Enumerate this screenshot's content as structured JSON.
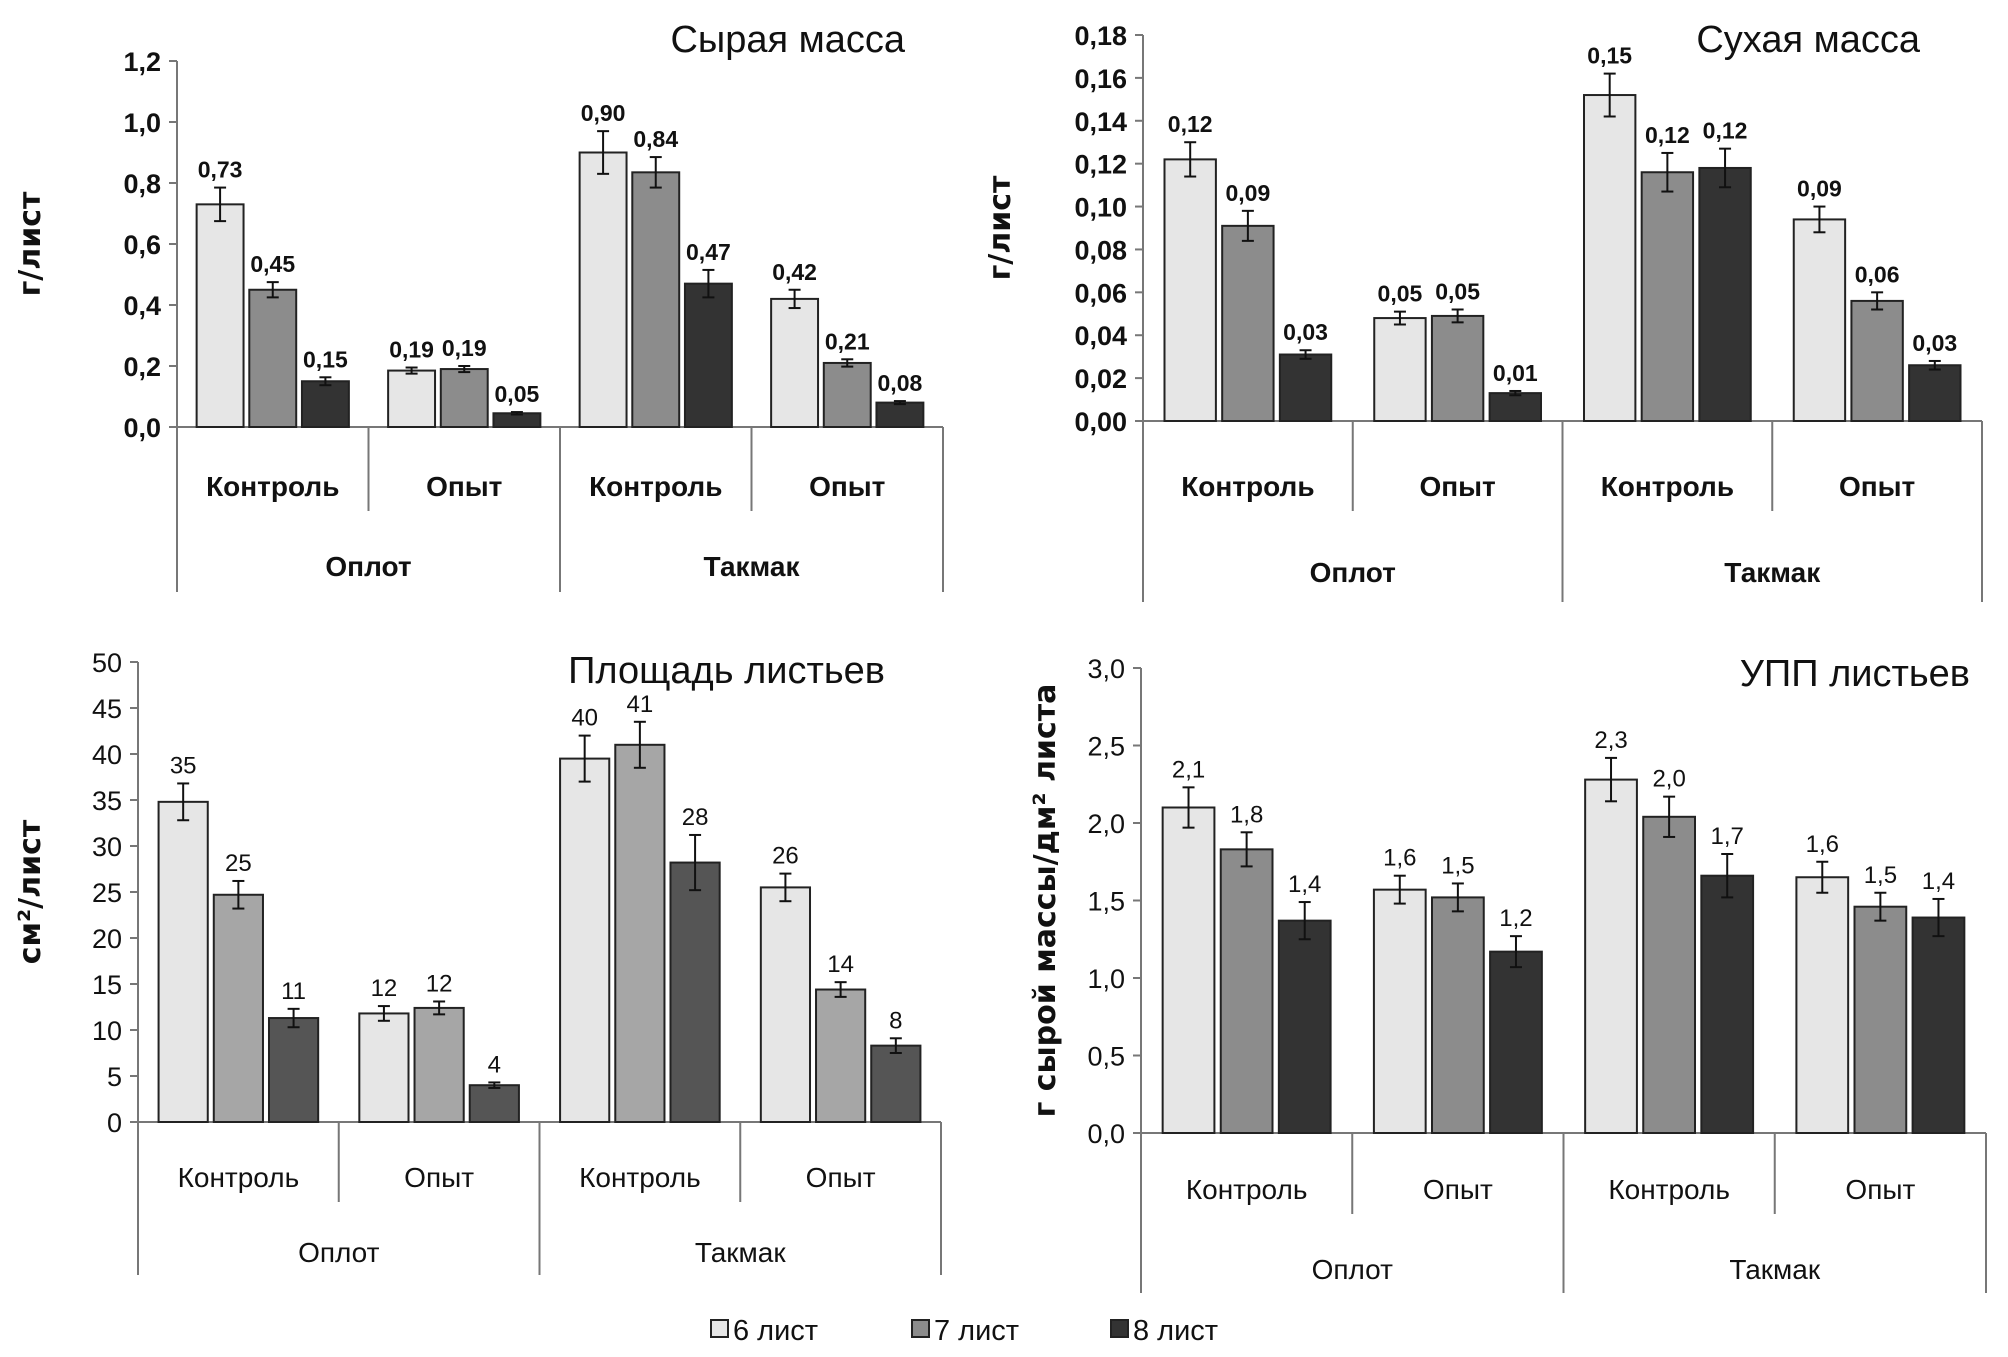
{
  "legend": {
    "items": [
      {
        "label": "6 лист",
        "color": "#e6e6e6"
      },
      {
        "label": "7 лист",
        "color": "#8c8c8c"
      },
      {
        "label": "8 лист",
        "color": "#333333"
      }
    ]
  },
  "chart_data": [
    {
      "type": "bar",
      "title": "Сырая масса",
      "ylabel": "г/лист",
      "ylim": [
        0,
        1.2
      ],
      "yticks": [
        "0,0",
        "0,2",
        "0,4",
        "0,6",
        "0,8",
        "1,0",
        "1,2"
      ],
      "groups": [
        "Оплот",
        "Такмак"
      ],
      "categories": [
        "Контроль",
        "Опыт",
        "Контроль",
        "Опыт"
      ],
      "colors": [
        "#e6e6e6",
        "#8c8c8c",
        "#333333"
      ],
      "series": [
        {
          "name": "6 лист",
          "values": [
            0.73,
            0.185,
            0.9,
            0.42
          ],
          "errors": [
            0.055,
            0.01,
            0.07,
            0.03
          ],
          "labels": [
            "0,73",
            "0,19",
            "0,90",
            "0,42"
          ]
        },
        {
          "name": "7 лист",
          "values": [
            0.45,
            0.19,
            0.835,
            0.21
          ],
          "errors": [
            0.025,
            0.01,
            0.05,
            0.012
          ],
          "labels": [
            "0,45",
            "0,19",
            "0,84",
            "0,21"
          ]
        },
        {
          "name": "8 лист",
          "values": [
            0.15,
            0.045,
            0.47,
            0.08
          ],
          "errors": [
            0.013,
            0.004,
            0.045,
            0.005
          ],
          "labels": [
            "0,15",
            "0,05",
            "0,47",
            "0,08"
          ]
        }
      ]
    },
    {
      "type": "bar",
      "title": "Сухая масса",
      "ylabel": "г/лист",
      "ylim": [
        0,
        0.18
      ],
      "yticks": [
        "0,00",
        "0,02",
        "0,04",
        "0,06",
        "0,08",
        "0,10",
        "0,12",
        "0,14",
        "0,16",
        "0,18"
      ],
      "groups": [
        "Оплот",
        "Такмак"
      ],
      "categories": [
        "Контроль",
        "Опыт",
        "Контроль",
        "Опыт"
      ],
      "colors": [
        "#e6e6e6",
        "#8c8c8c",
        "#333333"
      ],
      "series": [
        {
          "name": "6 лист",
          "values": [
            0.122,
            0.048,
            0.152,
            0.094
          ],
          "errors": [
            0.008,
            0.003,
            0.01,
            0.006
          ],
          "labels": [
            "0,12",
            "0,05",
            "0,15",
            "0,09"
          ]
        },
        {
          "name": "7 лист",
          "values": [
            0.091,
            0.049,
            0.116,
            0.056
          ],
          "errors": [
            0.007,
            0.003,
            0.009,
            0.004
          ],
          "labels": [
            "0,09",
            "0,05",
            "0,12",
            "0,06"
          ]
        },
        {
          "name": "8 лист",
          "values": [
            0.031,
            0.013,
            0.118,
            0.026
          ],
          "errors": [
            0.002,
            0.001,
            0.009,
            0.002
          ],
          "labels": [
            "0,03",
            "0,01",
            "0,12",
            "0,03"
          ]
        }
      ]
    },
    {
      "type": "bar",
      "title": "Площадь листьев",
      "ylabel": "см²/лист",
      "ylim": [
        0,
        50
      ],
      "yticks": [
        "0",
        "5",
        "10",
        "15",
        "20",
        "25",
        "30",
        "35",
        "40",
        "45",
        "50"
      ],
      "groups": [
        "Оплот",
        "Такмак"
      ],
      "categories": [
        "Контроль",
        "Опыт",
        "Контроль",
        "Опыт"
      ],
      "colors": [
        "#e6e6e6",
        "#a6a6a6",
        "#555555"
      ],
      "series": [
        {
          "name": "6 лист",
          "values": [
            34.8,
            11.8,
            39.5,
            25.5
          ],
          "errors": [
            2,
            0.8,
            2.5,
            1.5
          ],
          "labels": [
            "35",
            "12",
            "40",
            "26"
          ]
        },
        {
          "name": "7 лист",
          "values": [
            24.7,
            12.4,
            41,
            14.4
          ],
          "errors": [
            1.5,
            0.7,
            2.5,
            0.8
          ],
          "labels": [
            "25",
            "12",
            "41",
            "14"
          ]
        },
        {
          "name": "8 лист",
          "values": [
            11.3,
            4.0,
            28.2,
            8.3
          ],
          "errors": [
            1,
            0.3,
            3,
            0.8
          ],
          "labels": [
            "11",
            "4",
            "28",
            "8"
          ]
        }
      ]
    },
    {
      "type": "bar",
      "title": "УПП листьев",
      "ylabel": "г сырой массы/дм² листа",
      "ylim": [
        0,
        3.0
      ],
      "yticks": [
        "0,0",
        "0,5",
        "1,0",
        "1,5",
        "2,0",
        "2,5",
        "3,0"
      ],
      "groups": [
        "Оплот",
        "Такмак"
      ],
      "categories": [
        "Контроль",
        "Опыт",
        "Контроль",
        "Опыт"
      ],
      "colors": [
        "#e6e6e6",
        "#8c8c8c",
        "#333333"
      ],
      "series": [
        {
          "name": "6 лист",
          "values": [
            2.1,
            1.57,
            2.28,
            1.65
          ],
          "errors": [
            0.13,
            0.09,
            0.14,
            0.1
          ],
          "labels": [
            "2,1",
            "1,6",
            "2,3",
            "1,6"
          ]
        },
        {
          "name": "7 лист",
          "values": [
            1.83,
            1.52,
            2.04,
            1.46
          ],
          "errors": [
            0.11,
            0.09,
            0.13,
            0.09
          ],
          "labels": [
            "1,8",
            "1,5",
            "2,0",
            "1,5"
          ]
        },
        {
          "name": "8 лист",
          "values": [
            1.37,
            1.17,
            1.66,
            1.39
          ],
          "errors": [
            0.12,
            0.1,
            0.14,
            0.12
          ],
          "labels": [
            "1,4",
            "1,2",
            "1,7",
            "1,4"
          ]
        }
      ]
    }
  ]
}
